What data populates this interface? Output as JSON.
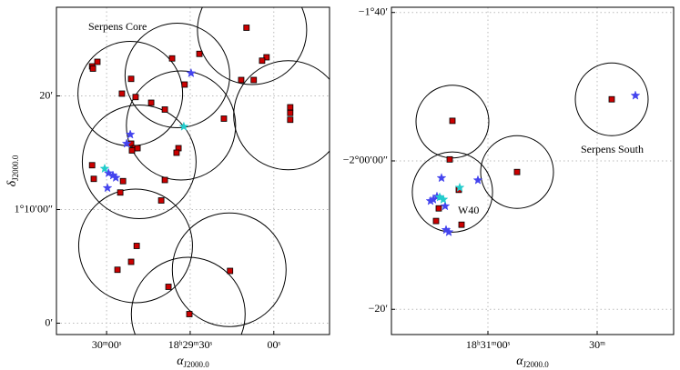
{
  "chart_data": [
    {
      "type": "scatter",
      "xlabel": "α",
      "xlabel_sub": "J2000.0",
      "ylabel": "δ",
      "ylabel_sub": "J2000.0",
      "annotations": [
        "Serpens Core"
      ],
      "xlim": [
        78,
        -20
      ],
      "ylim": [
        -1,
        27.8
      ],
      "xticks": [
        {
          "value": 60,
          "label": "30ᵐ00ˢ"
        },
        {
          "value": 30,
          "label": "18ʰ29ᵐ30ˢ"
        },
        {
          "value": 0,
          "label": "00ˢ"
        }
      ],
      "yticks": [
        {
          "value": 0,
          "label": "0′"
        },
        {
          "value": 10,
          "label": "1°10′00″"
        },
        {
          "value": 20,
          "label": "20′"
        }
      ],
      "grid": true,
      "fields": {
        "x": [
          51.5,
          34.6,
          7.8,
          -5.2,
          33.3,
          48.3,
          49.6,
          16.0,
          30.7
        ],
        "y": [
          20.2,
          21.8,
          25.8,
          18.3,
          17.4,
          14.2,
          6.8,
          4.7,
          0.8
        ],
        "r": [
          4.6,
          4.6,
          4.8,
          4.8,
          4.8,
          5.0,
          5.0,
          5.0,
          5.0
        ]
      },
      "series": [
        {
          "marker": "square",
          "color": "#cc0000",
          "x": [
            65.2,
            64.9,
            63.3,
            9.8,
            2.6,
            4.2,
            26.7,
            36.5,
            51.2,
            54.5,
            49.6,
            32.0,
            11.7,
            7.2,
            44.0,
            39.1,
            17.9,
            -5.9,
            -5.9,
            -5.9,
            34.2,
            34.9,
            51.2,
            49.9,
            48.9,
            50.9,
            65.2,
            64.6,
            54.1,
            39.1,
            55.1,
            40.4,
            49.2,
            51.2,
            56.1,
            37.8,
            15.7,
            30.3
          ],
          "y": [
            22.6,
            22.4,
            23.0,
            26.0,
            23.4,
            23.1,
            23.7,
            23.3,
            21.5,
            20.2,
            19.9,
            21.0,
            21.4,
            21.4,
            19.4,
            18.8,
            18.0,
            19.0,
            18.5,
            17.9,
            15.4,
            15.0,
            15.8,
            15.4,
            15.4,
            15.2,
            13.9,
            12.7,
            12.5,
            12.6,
            11.5,
            10.8,
            6.8,
            5.4,
            4.7,
            3.2,
            4.6,
            0.8
          ]
        },
        {
          "marker": "star",
          "color": "#4444ee",
          "x": [
            29.7,
            51.5,
            52.8,
            59.3,
            57.7,
            56.7,
            59.7
          ],
          "y": [
            22.0,
            16.6,
            15.8,
            13.2,
            13.0,
            12.8,
            11.9
          ]
        },
        {
          "marker": "star",
          "color": "#22cccc",
          "x": [
            32.3,
            60.7
          ],
          "y": [
            17.3,
            13.6
          ]
        }
      ]
    },
    {
      "type": "scatter",
      "xlabel": "α",
      "xlabel_sub": "J2000.0",
      "annotations": [
        "Serpens South",
        "W40"
      ],
      "xlim": [
        113,
        -42
      ],
      "ylim": [
        -23.4,
        20.7
      ],
      "xticks": [
        {
          "value": 60,
          "label": "18ʰ31ᵐ00ˢ"
        },
        {
          "value": 0,
          "label": "30ᵐ"
        }
      ],
      "yticks": [
        {
          "value": 20,
          "label": "−1°40′"
        },
        {
          "value": 0,
          "label": "−2°00′00″"
        },
        {
          "value": -20,
          "label": "−20′"
        }
      ],
      "grid": true,
      "fields": {
        "x": [
          79.5,
          79.5,
          44,
          -8
        ],
        "y": [
          5.3,
          -4.2,
          -1.5,
          8.3
        ],
        "r": [
          4.9,
          5.4,
          4.9,
          4.9
        ]
      },
      "series": [
        {
          "marker": "square",
          "color": "#cc0000",
          "x": [
            79.5,
            44,
            -8,
            81,
            76,
            87,
            88.5,
            74.5
          ],
          "y": [
            5.4,
            -1.5,
            8.3,
            0.2,
            -3.9,
            -6.4,
            -8.1,
            -8.6
          ]
        },
        {
          "marker": "star",
          "color": "#4444ee",
          "x": [
            -21,
            85.5,
            65.5,
            90,
            88,
            91.5,
            83.5,
            83,
            81.5
          ],
          "y": [
            8.8,
            -2.3,
            -2.6,
            -5.2,
            -4.8,
            -5.4,
            -6.1,
            -9.3,
            -9.6
          ]
        },
        {
          "marker": "star",
          "color": "#22cccc",
          "x": [
            75.5,
            86.5,
            84.5
          ],
          "y": [
            -3.6,
            -4.9,
            -5.2
          ]
        }
      ]
    }
  ]
}
